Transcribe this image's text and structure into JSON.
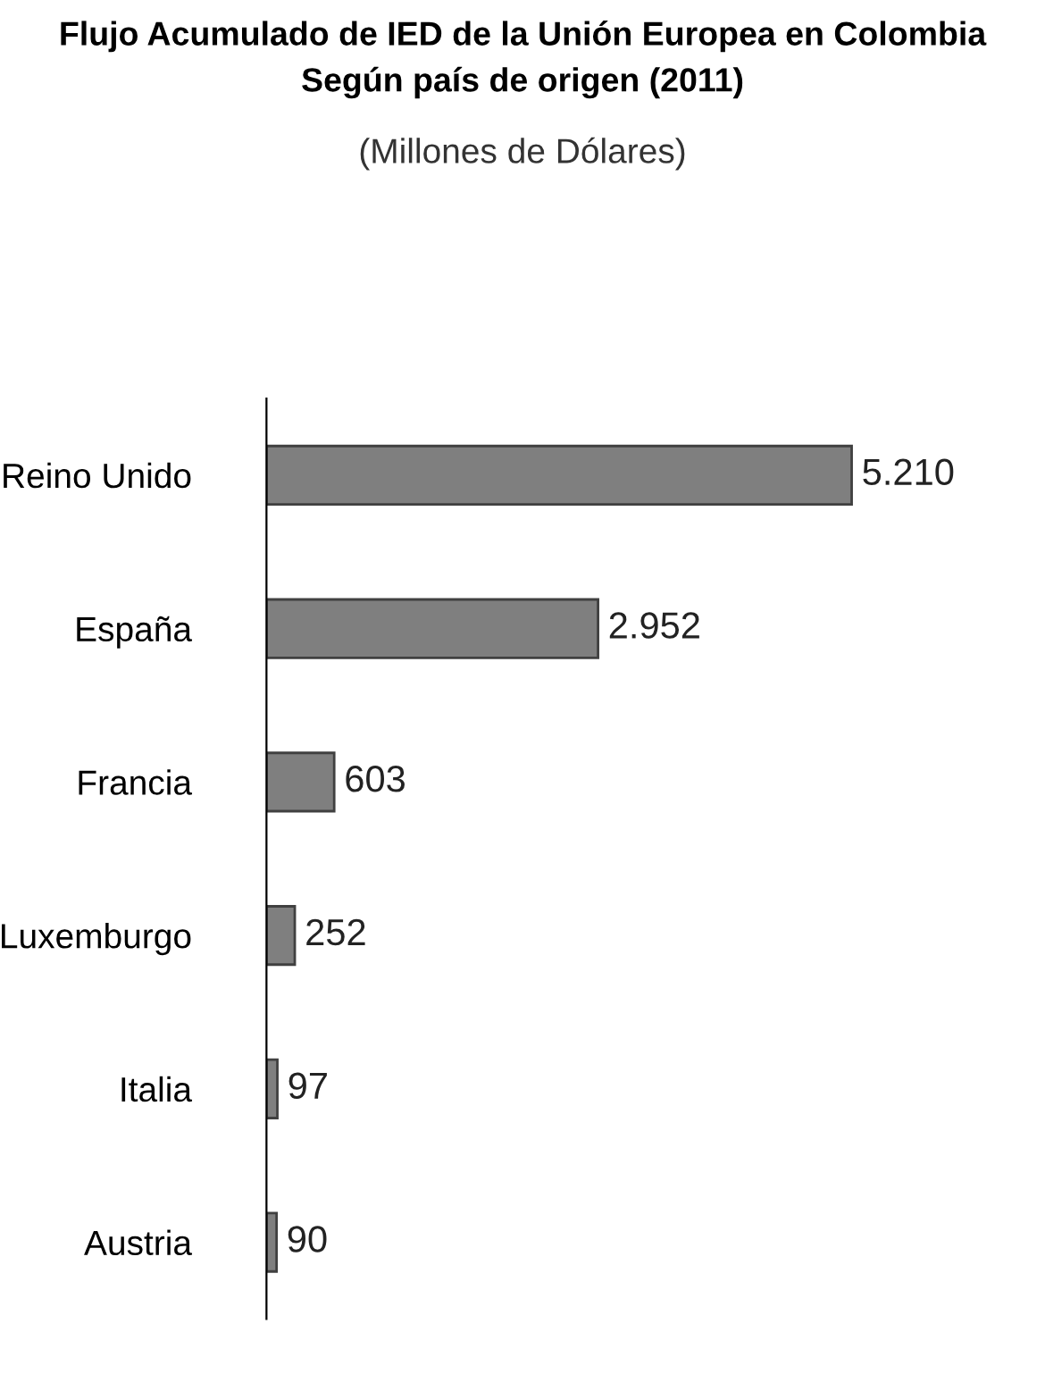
{
  "chart_data": {
    "type": "bar",
    "orientation": "horizontal",
    "title": "Flujo Acumulado de IED de la Unión Europea en Colombia\nSegún país de origen (2011)",
    "subtitle": "(Millones de Dólares)",
    "categories": [
      "Reino Unido",
      "España",
      "Francia",
      "Luxemburgo",
      "Italia",
      "Austria"
    ],
    "values": [
      5210,
      2952,
      603,
      252,
      97,
      90
    ],
    "value_labels": [
      "5.210",
      "2.952",
      "603",
      "252",
      "97",
      "90"
    ],
    "color": "#7f7f7f",
    "grid": false,
    "legend": false
  }
}
